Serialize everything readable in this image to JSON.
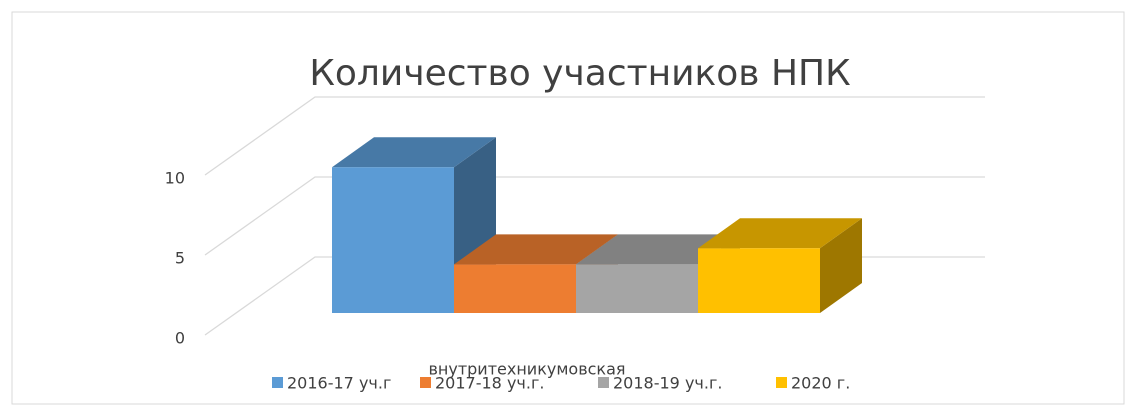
{
  "chart_data": {
    "type": "bar3d",
    "title": "Количество участников НПК",
    "categories": [
      "внутритехникумовская"
    ],
    "series": [
      {
        "name": "2016-17 уч.г",
        "color": "#5b9bd5",
        "values": [
          9
        ]
      },
      {
        "name": "2017-18 уч.г.",
        "color": "#ed7d31",
        "values": [
          3
        ]
      },
      {
        "name": "2018-19 уч.г.",
        "color": "#a5a5a5",
        "values": [
          3
        ]
      },
      {
        "name": "2020 г.",
        "color": "#ffc000",
        "values": [
          4
        ]
      }
    ],
    "ylim": [
      0,
      10
    ],
    "yticks": [
      0,
      5,
      10
    ],
    "grid": true,
    "legend": "bottom"
  }
}
